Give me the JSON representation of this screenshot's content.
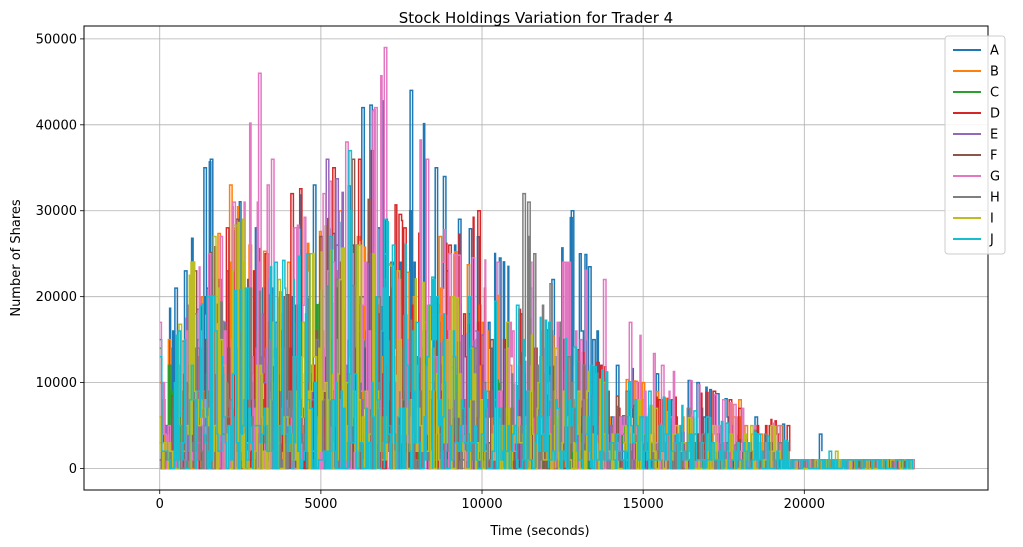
{
  "chart_data": {
    "type": "line",
    "title": "Stock Holdings Variation for Trader 4",
    "xlabel": "Time (seconds)",
    "ylabel": "Number of Shares",
    "xlim": [
      -2350,
      25700
    ],
    "ylim": [
      -2500,
      51500
    ],
    "grid": true,
    "legend_position": "top-right",
    "x_ticks": [
      0,
      5000,
      10000,
      15000,
      20000
    ],
    "x_tick_labels": [
      "0",
      "5000",
      "10000",
      "15000",
      "20000"
    ],
    "y_ticks": [
      0,
      10000,
      20000,
      30000,
      40000,
      50000
    ],
    "y_tick_labels": [
      "0",
      "10000",
      "20000",
      "30000",
      "40000",
      "50000"
    ],
    "series": [
      {
        "name": "A",
        "color": "#1f77b4",
        "start": 15000,
        "end": 1000,
        "spikes": [
          [
            500,
            21000
          ],
          [
            800,
            23000
          ],
          [
            1400,
            35000
          ],
          [
            1600,
            36000
          ],
          [
            3000,
            28000
          ],
          [
            4800,
            33000
          ],
          [
            5500,
            26000
          ],
          [
            6300,
            42000
          ],
          [
            7800,
            44000
          ],
          [
            9300,
            29000
          ],
          [
            11500,
            21000
          ],
          [
            12200,
            22000
          ],
          [
            12800,
            30000
          ],
          [
            14200,
            12000
          ],
          [
            16700,
            10000
          ],
          [
            18500,
            6000
          ],
          [
            20500,
            4000
          ]
        ]
      },
      {
        "name": "B",
        "color": "#ff7f0e",
        "start": 10000,
        "end": 1000,
        "spikes": [
          [
            300,
            15000
          ],
          [
            1300,
            20000
          ],
          [
            2200,
            33000
          ],
          [
            2800,
            26000
          ],
          [
            4000,
            24000
          ],
          [
            5600,
            30000
          ],
          [
            7200,
            21000
          ],
          [
            8700,
            27000
          ],
          [
            10500,
            20000
          ],
          [
            12000,
            16000
          ],
          [
            13500,
            11000
          ],
          [
            15000,
            10000
          ],
          [
            16500,
            6000
          ],
          [
            18000,
            8000
          ],
          [
            19300,
            5000
          ]
        ]
      },
      {
        "name": "C",
        "color": "#2ca02c",
        "start": 14000,
        "end": 1000,
        "spikes": [
          [
            300,
            12000
          ],
          [
            1200,
            15000
          ],
          [
            2500,
            18000
          ],
          [
            3800,
            16000
          ],
          [
            5200,
            20000
          ],
          [
            7000,
            14000
          ],
          [
            8800,
            12000
          ],
          [
            10800,
            10000
          ],
          [
            12500,
            8000
          ],
          [
            14500,
            6000
          ],
          [
            16800,
            4000
          ]
        ]
      },
      {
        "name": "D",
        "color": "#d62728",
        "start": 6000,
        "end": 1000,
        "spikes": [
          [
            1200,
            14000
          ],
          [
            2100,
            28000
          ],
          [
            3300,
            25000
          ],
          [
            4100,
            32000
          ],
          [
            5400,
            35000
          ],
          [
            6200,
            36000
          ],
          [
            6600,
            37000
          ],
          [
            7600,
            28000
          ],
          [
            9000,
            26000
          ],
          [
            9900,
            30000
          ],
          [
            11200,
            18000
          ],
          [
            12500,
            15000
          ],
          [
            13700,
            12000
          ],
          [
            14800,
            10000
          ],
          [
            15500,
            8000
          ],
          [
            17200,
            9000
          ],
          [
            17700,
            8000
          ],
          [
            18000,
            7000
          ],
          [
            19500,
            5000
          ]
        ]
      },
      {
        "name": "E",
        "color": "#9467bd",
        "start": 1000,
        "end": 1000,
        "spikes": [
          [
            900,
            19000
          ],
          [
            2000,
            17000
          ],
          [
            3400,
            22000
          ],
          [
            4300,
            18000
          ],
          [
            5200,
            36000
          ],
          [
            6500,
            25000
          ],
          [
            8200,
            14000
          ],
          [
            9800,
            16000
          ],
          [
            11500,
            12000
          ],
          [
            13000,
            9000
          ],
          [
            15000,
            6000
          ],
          [
            17000,
            3000
          ]
        ]
      },
      {
        "name": "F",
        "color": "#8c564b",
        "start": 1000,
        "end": 1000,
        "spikes": [
          [
            1100,
            23000
          ],
          [
            2400,
            29000
          ],
          [
            3900,
            20000
          ],
          [
            5000,
            27000
          ],
          [
            6000,
            36000
          ],
          [
            7200,
            24000
          ],
          [
            8600,
            19000
          ],
          [
            10300,
            15000
          ],
          [
            12100,
            12000
          ],
          [
            13900,
            9000
          ],
          [
            15800,
            5000
          ],
          [
            18500,
            3000
          ]
        ]
      },
      {
        "name": "G",
        "color": "#e377c2",
        "start": 17000,
        "end": 1000,
        "spikes": [
          [
            1900,
            27000
          ],
          [
            2300,
            31000
          ],
          [
            3100,
            46000
          ],
          [
            3500,
            36000
          ],
          [
            4200,
            28000
          ],
          [
            5100,
            32000
          ],
          [
            5800,
            38000
          ],
          [
            6700,
            42000
          ],
          [
            7000,
            49000
          ],
          [
            8300,
            36000
          ],
          [
            9000,
            25000
          ],
          [
            10500,
            24000
          ],
          [
            11500,
            24000
          ],
          [
            12700,
            24000
          ],
          [
            13800,
            22000
          ],
          [
            14600,
            17000
          ],
          [
            15600,
            12000
          ],
          [
            17500,
            8000
          ],
          [
            19200,
            5000
          ]
        ]
      },
      {
        "name": "H",
        "color": "#7f7f7f",
        "start": 3000,
        "end": 1000,
        "spikes": [
          [
            1100,
            18000
          ],
          [
            2800,
            21000
          ],
          [
            4300,
            19000
          ],
          [
            5500,
            22000
          ],
          [
            6800,
            20000
          ],
          [
            8200,
            16000
          ],
          [
            9800,
            14000
          ],
          [
            11300,
            32000
          ],
          [
            11450,
            31000
          ],
          [
            12700,
            13000
          ],
          [
            14500,
            9000
          ],
          [
            16400,
            7000
          ],
          [
            18800,
            4000
          ]
        ]
      },
      {
        "name": "I",
        "color": "#bcbd22",
        "start": 6000,
        "end": 1000,
        "spikes": [
          [
            1000,
            24000
          ],
          [
            1700,
            27000
          ],
          [
            2600,
            29000
          ],
          [
            3700,
            22000
          ],
          [
            4700,
            25000
          ],
          [
            6200,
            26000
          ],
          [
            7400,
            23000
          ],
          [
            9100,
            20000
          ],
          [
            10800,
            17000
          ],
          [
            12300,
            14000
          ],
          [
            13800,
            10000
          ],
          [
            15400,
            7000
          ],
          [
            17200,
            5000
          ],
          [
            19000,
            5000
          ],
          [
            21000,
            2000
          ]
        ]
      },
      {
        "name": "J",
        "color": "#17becf",
        "start": 13000,
        "end": 1000,
        "spikes": [
          [
            600,
            16000
          ],
          [
            1500,
            20000
          ],
          [
            2700,
            21000
          ],
          [
            3600,
            24000
          ],
          [
            4600,
            25000
          ],
          [
            5300,
            27000
          ],
          [
            5900,
            37000
          ],
          [
            7000,
            29000
          ],
          [
            8500,
            22000
          ],
          [
            9600,
            20000
          ],
          [
            11100,
            19000
          ],
          [
            12100,
            17000
          ],
          [
            13400,
            12000
          ],
          [
            15200,
            9000
          ],
          [
            17000,
            6000
          ],
          [
            18600,
            4000
          ],
          [
            20800,
            2000
          ]
        ]
      }
    ]
  }
}
